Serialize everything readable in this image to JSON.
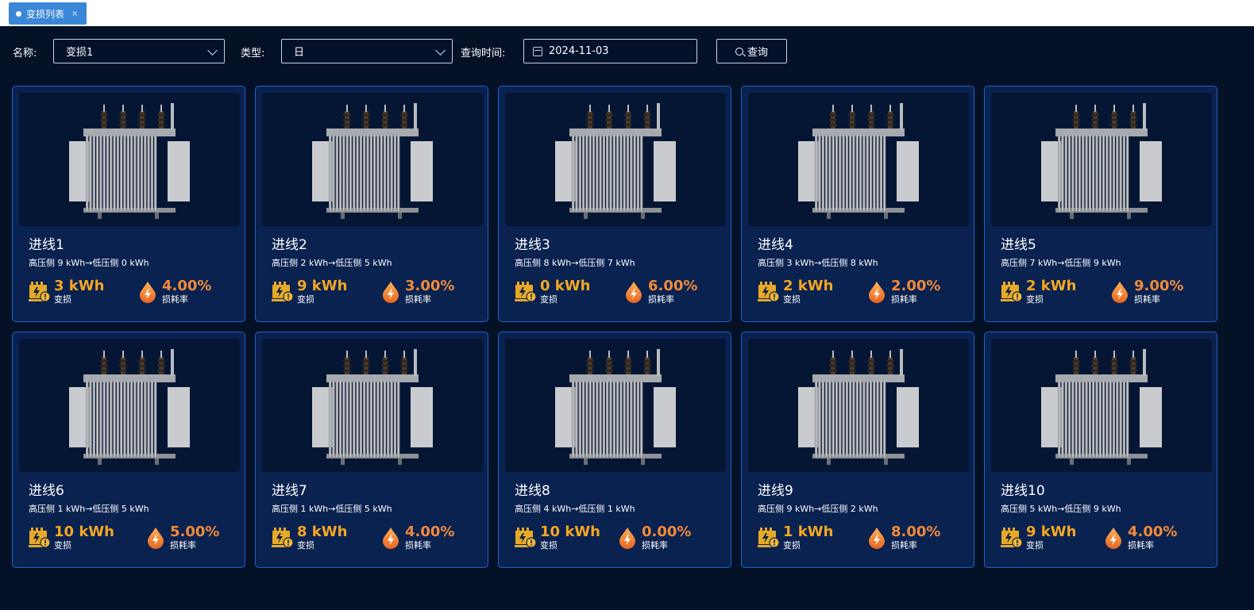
{
  "tabs": [
    {
      "label": "变损列表",
      "close": "×"
    }
  ],
  "filters": {
    "name_label": "名称:",
    "name_value": "变损1",
    "type_label": "类型:",
    "type_value": "日",
    "time_label": "查询时间:",
    "time_value": "2024-11-03",
    "query_button": "查询"
  },
  "stat_labels": {
    "loss": "变损",
    "rate": "损耗率"
  },
  "colors": {
    "accent_yellow": "#f5a623",
    "accent_orange": "#f28a3a",
    "card_border": "#1f63c8",
    "background": "#041126"
  },
  "cards": [
    {
      "title": "进线1",
      "subtitle": "高压侧 9 kWh→低压侧 0 kWh",
      "loss": "3 kWh",
      "rate": "4.00%"
    },
    {
      "title": "进线2",
      "subtitle": "高压侧 2 kWh→低压侧 5 kWh",
      "loss": "9 kWh",
      "rate": "3.00%"
    },
    {
      "title": "进线3",
      "subtitle": "高压侧 8 kWh→低压侧 7 kWh",
      "loss": "0 kWh",
      "rate": "6.00%"
    },
    {
      "title": "进线4",
      "subtitle": "高压侧 3 kWh→低压侧 8 kWh",
      "loss": "2 kWh",
      "rate": "2.00%"
    },
    {
      "title": "进线5",
      "subtitle": "高压侧 7 kWh→低压侧 9 kWh",
      "loss": "2 kWh",
      "rate": "9.00%"
    },
    {
      "title": "进线6",
      "subtitle": "高压侧 1 kWh→低压侧 5 kWh",
      "loss": "10 kWh",
      "rate": "5.00%"
    },
    {
      "title": "进线7",
      "subtitle": "高压侧 1 kWh→低压侧 5 kWh",
      "loss": "8 kWh",
      "rate": "4.00%"
    },
    {
      "title": "进线8",
      "subtitle": "高压侧 4 kWh→低压侧 1 kWh",
      "loss": "10 kWh",
      "rate": "0.00%"
    },
    {
      "title": "进线9",
      "subtitle": "高压侧 9 kWh→低压侧 2 kWh",
      "loss": "1 kWh",
      "rate": "8.00%"
    },
    {
      "title": "进线10",
      "subtitle": "高压侧 5 kWh→低压侧 9 kWh",
      "loss": "9 kWh",
      "rate": "4.00%"
    }
  ]
}
